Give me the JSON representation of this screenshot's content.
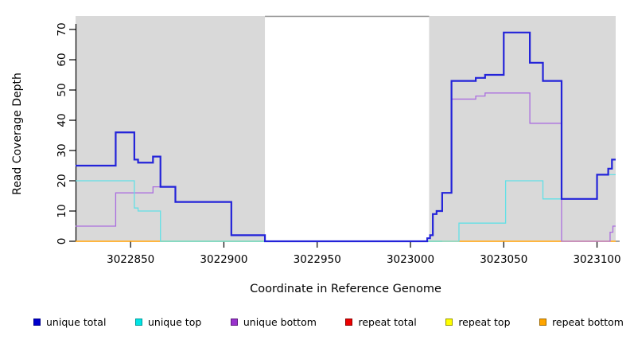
{
  "chart_data": {
    "type": "line",
    "subtype": "step-coverage-plot",
    "title": "",
    "xlabel": "Coordinate in Reference Genome",
    "ylabel": "Read Coverage Depth",
    "xlim": [
      3022820.5,
      3023110
    ],
    "ylim": [
      0,
      75.8
    ],
    "x_ticks": [
      3022850,
      3022900,
      3022950,
      3023000,
      3023050,
      3023100
    ],
    "y_ticks": [
      0,
      10,
      20,
      30,
      40,
      50,
      60,
      70
    ],
    "grid": false,
    "legend_position": "bottom-horizontal",
    "shaded_regions": [
      {
        "name": "left-gray-region",
        "x0": 3022820.5,
        "x1": 3022922,
        "color": "#d9d9d9"
      },
      {
        "name": "right-gray-region",
        "x0": 3023010,
        "x1": 3023110,
        "color": "#d9d9d9"
      }
    ],
    "gap_top_line": {
      "x0": 3022922,
      "x1": 3023010,
      "color": "#8c8c8c"
    },
    "series": [
      {
        "name": "repeat bottom",
        "color": "#ff9e00",
        "width": 1.6,
        "points": [
          [
            3022820.5,
            0
          ]
        ],
        "end_x": 3023110
      },
      {
        "name": "unique top over repeat bottom (blend)",
        "color": "#8fd08f",
        "width": 1.6,
        "points": [
          [
            3022866,
            0
          ]
        ],
        "end_x": 3023017
      },
      {
        "name": "unique bottom",
        "color": "#ab6edf",
        "width": 1.3,
        "points": [
          [
            3022820.5,
            5
          ],
          [
            3022842,
            16
          ],
          [
            3022862,
            18
          ],
          [
            3022874,
            13
          ],
          [
            3022904,
            2
          ],
          [
            3022922,
            0
          ],
          [
            3023009,
            1
          ],
          [
            3023010.5,
            2
          ],
          [
            3023012,
            9
          ],
          [
            3023014,
            10
          ],
          [
            3023017,
            16
          ],
          [
            3023022,
            47
          ],
          [
            3023035,
            48
          ],
          [
            3023040,
            49
          ],
          [
            3023064,
            39
          ],
          [
            3023081,
            0
          ],
          [
            3023107,
            3
          ],
          [
            3023108.5,
            5
          ]
        ],
        "end_x": 3023110
      },
      {
        "name": "unique top",
        "color": "#62e0e6",
        "width": 1.3,
        "points": [
          [
            3022820.5,
            20
          ],
          [
            3022852,
            11
          ],
          [
            3022854,
            10
          ],
          [
            3022866,
            0
          ],
          [
            3023026,
            6
          ],
          [
            3023051,
            20
          ],
          [
            3023071,
            14
          ],
          [
            3023100,
            22
          ]
        ],
        "end_x": 3023110
      },
      {
        "name": "unique total",
        "color": "#2323d9",
        "width": 2.2,
        "points": [
          [
            3022820.5,
            25
          ],
          [
            3022842,
            36
          ],
          [
            3022852,
            27
          ],
          [
            3022854,
            26
          ],
          [
            3022862,
            28
          ],
          [
            3022866,
            18
          ],
          [
            3022874,
            13
          ],
          [
            3022904,
            2
          ],
          [
            3022922,
            0
          ],
          [
            3023009,
            1
          ],
          [
            3023010.5,
            2
          ],
          [
            3023012,
            9
          ],
          [
            3023014,
            10
          ],
          [
            3023017,
            16
          ],
          [
            3023022,
            53
          ],
          [
            3023035,
            54
          ],
          [
            3023040,
            55
          ],
          [
            3023050,
            69
          ],
          [
            3023064,
            59
          ],
          [
            3023071,
            53
          ],
          [
            3023081,
            14
          ],
          [
            3023100,
            22
          ],
          [
            3023106,
            24
          ],
          [
            3023108,
            27
          ]
        ],
        "end_x": 3023110
      },
      {
        "name": "repeat total",
        "color": "#e60000",
        "width": 1.3,
        "points": [
          [
            3022820.5,
            0
          ]
        ],
        "end_x": 3022820.5
      },
      {
        "name": "repeat top",
        "color": "#ffff00",
        "width": 1.3,
        "points": [
          [
            3022820.5,
            0
          ]
        ],
        "end_x": 3022820.5
      }
    ]
  },
  "legend": {
    "items": [
      {
        "label": "unique total",
        "fill": "#0000cd",
        "border": "#00008b"
      },
      {
        "label": "unique top",
        "fill": "#00e5e5",
        "border": "#009999"
      },
      {
        "label": "unique bottom",
        "fill": "#9932cc",
        "border": "#5e1a80"
      },
      {
        "label": "repeat total",
        "fill": "#ee0000",
        "border": "#8b0000"
      },
      {
        "label": "repeat top",
        "fill": "#ffff00",
        "border": "#999900"
      },
      {
        "label": "repeat bottom",
        "fill": "#ffa500",
        "border": "#a06a00"
      }
    ]
  }
}
